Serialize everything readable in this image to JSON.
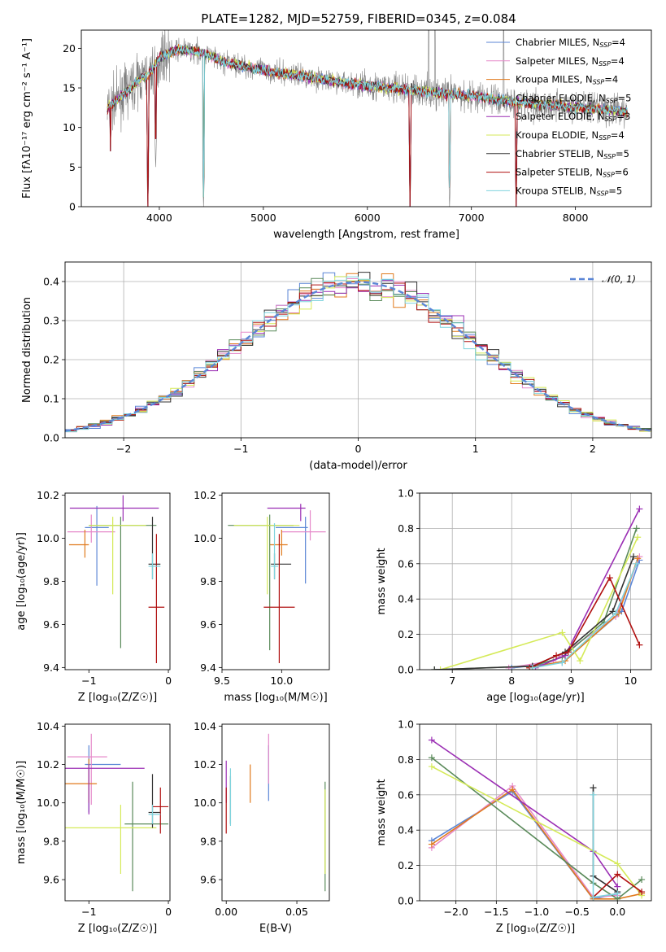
{
  "title": "PLATE=1282, MJD=52759, FIBERID=0345, z=0.084",
  "models": [
    {
      "name": "Chabrier MILES",
      "nssp": "4",
      "color": "#5b86d6"
    },
    {
      "name": "Salpeter MILES",
      "nssp": "4",
      "color": "#e589c9"
    },
    {
      "name": "Kroupa MILES",
      "nssp": "4",
      "color": "#e07a1c"
    },
    {
      "name": "Chabrier ELODIE",
      "nssp": "5",
      "color": "#5a8a5a"
    },
    {
      "name": "Salpeter ELODIE",
      "nssp": "3",
      "color": "#9b2fb4"
    },
    {
      "name": "Kroupa ELODIE",
      "nssp": "4",
      "color": "#d5ea58"
    },
    {
      "name": "Chabrier STELIB",
      "nssp": "5",
      "color": "#333333"
    },
    {
      "name": "Salpeter STELIB",
      "nssp": "6",
      "color": "#b01010"
    },
    {
      "name": "Kroupa STELIB",
      "nssp": "5",
      "color": "#7fd3dd"
    }
  ],
  "chart_data": [
    {
      "id": "spectrum",
      "type": "line",
      "xlabel": "wavelength [Angstrom, rest frame]",
      "ylabel": "Flux [fλ10⁻¹⁷ erg cm⁻² s⁻¹ A⁻¹]",
      "xlim": [
        3250,
        8730
      ],
      "ylim": [
        0,
        22.3
      ],
      "xticks": [
        "4000",
        "5000",
        "6000",
        "7000",
        "8000"
      ],
      "yticks": [
        "0",
        "5",
        "10",
        "15",
        "20"
      ],
      "data_color": "#808080",
      "continuum": {
        "x": [
          3500,
          3600,
          3700,
          3800,
          3900,
          3950,
          4000,
          4100,
          4200,
          4400,
          4600,
          4800,
          5000,
          5200,
          5400,
          5600,
          5800,
          6000,
          6200,
          6400,
          6600,
          6800,
          7000,
          7200,
          7400,
          7600,
          7800,
          8000,
          8200,
          8500
        ],
        "y": [
          12.5,
          13.5,
          14.8,
          16.0,
          16.8,
          17.5,
          18.8,
          19.5,
          19.8,
          19.5,
          18.3,
          17.8,
          17.2,
          16.8,
          16.5,
          16.0,
          15.6,
          15.3,
          15.0,
          14.8,
          14.5,
          14.2,
          14.0,
          13.6,
          13.2,
          13.0,
          12.8,
          12.6,
          12.3,
          12.0
        ]
      },
      "absorption_dips": [
        {
          "x": 3530,
          "y": 7.0
        },
        {
          "x": 3890,
          "y": 0.0
        },
        {
          "x": 3965,
          "y": 5.0
        },
        {
          "x": 4425,
          "y": 0.0
        },
        {
          "x": 6410,
          "y": 0.0
        },
        {
          "x": 6790,
          "y": 0.0
        },
        {
          "x": 7430,
          "y": 0.0
        }
      ],
      "data_spikes": [
        {
          "x": 6590,
          "y": 22.3
        },
        {
          "x": 6650,
          "y": 22.3
        },
        {
          "x": 7310,
          "y": 22.3
        }
      ],
      "legend_loc": "upper right",
      "grid": false
    },
    {
      "id": "residuals",
      "type": "step",
      "xlabel": "(data-model)/error",
      "ylabel": "Normed distribution",
      "xlim": [
        -2.5,
        2.5
      ],
      "ylim": [
        0,
        0.45
      ],
      "xticks": [
        "−2",
        "−1",
        "0",
        "1",
        "2"
      ],
      "yticks": [
        "0.0",
        "0.1",
        "0.2",
        "0.3",
        "0.4"
      ],
      "curve": {
        "label": "𝒩(0, 1)",
        "color": "#5b86d6",
        "mu": 0,
        "sigma": 1
      },
      "bin_width": 0.1,
      "grid": true,
      "legend_loc": "upper right"
    },
    {
      "id": "age_vs_Z",
      "type": "errorbar",
      "xlabel": "Z [log₁₀(Z/Z☉)]",
      "ylabel": "age  [log₁₀(age/yr)]",
      "xlim": [
        -1.3,
        0.02
      ],
      "ylim": [
        9.39,
        10.21
      ],
      "xticks": [
        "−1",
        "0"
      ],
      "yticks": [
        "9.4",
        "9.6",
        "9.8",
        "10.0",
        "10.2"
      ],
      "points": [
        {
          "model": 0,
          "x": -0.9,
          "xerr": [
            0.15,
            0.15
          ],
          "y": 10.05,
          "yerr": [
            0.27,
            0.1
          ]
        },
        {
          "model": 1,
          "x": -0.97,
          "xerr": [
            0.3,
            0.3
          ],
          "y": 10.03,
          "yerr": [
            0.05,
            0.08
          ]
        },
        {
          "model": 2,
          "x": -1.05,
          "xerr": [
            0.2,
            0.05
          ],
          "y": 9.97,
          "yerr": [
            0.06,
            0.07
          ]
        },
        {
          "model": 3,
          "x": -0.6,
          "xerr": [
            0.4,
            0.45
          ],
          "y": 10.06,
          "yerr": [
            0.57,
            0.04
          ]
        },
        {
          "model": 4,
          "x": -0.57,
          "xerr": [
            0.67,
            0.45
          ],
          "y": 10.14,
          "yerr": [
            0.06,
            0.06
          ]
        },
        {
          "model": 5,
          "x": -0.7,
          "xerr": [
            0.3,
            0.42
          ],
          "y": 10.06,
          "yerr": [
            0.32,
            0.04
          ]
        },
        {
          "model": 6,
          "x": -0.2,
          "xerr": [
            0.05,
            0.1
          ],
          "y": 9.88,
          "yerr": [
            0.07,
            0.22
          ]
        },
        {
          "model": 7,
          "x": -0.15,
          "xerr": [
            0.1,
            0.1
          ],
          "y": 9.68,
          "yerr": [
            0.26,
            0.34
          ]
        },
        {
          "model": 8,
          "x": -0.2,
          "xerr": [
            0.05,
            0.1
          ],
          "y": 9.87,
          "yerr": [
            0.06,
            0.06
          ]
        }
      ]
    },
    {
      "id": "age_vs_mass",
      "type": "errorbar",
      "xlabel": "mass [log₁₀(M/M☉)]",
      "ylabel": "",
      "xlim": [
        9.5,
        10.4
      ],
      "ylim": [
        9.39,
        10.21
      ],
      "xticks": [
        "9.5",
        "10.0"
      ],
      "yticks": [
        "9.4",
        "9.6",
        "9.8",
        "10.0",
        "10.2"
      ],
      "points": [
        {
          "model": 0,
          "x": 10.2,
          "xerr": [
            0.25,
            0.02
          ],
          "y": 10.05,
          "yerr": [
            0.26,
            0.05
          ]
        },
        {
          "model": 1,
          "x": 10.24,
          "xerr": [
            0.24,
            0.13
          ],
          "y": 10.03,
          "yerr": [
            0.04,
            0.1
          ]
        },
        {
          "model": 2,
          "x": 10.0,
          "xerr": [
            0.1,
            0.05
          ],
          "y": 9.97,
          "yerr": [
            0.05,
            0.07
          ]
        },
        {
          "model": 3,
          "x": 9.9,
          "xerr": [
            0.35,
            0.2
          ],
          "y": 10.06,
          "yerr": [
            0.58,
            0.05
          ]
        },
        {
          "model": 4,
          "x": 10.16,
          "xerr": [
            0.28,
            0.04
          ],
          "y": 10.14,
          "yerr": [
            0.06,
            0.02
          ]
        },
        {
          "model": 5,
          "x": 9.88,
          "xerr": [
            0.28,
            0.27
          ],
          "y": 10.06,
          "yerr": [
            0.32,
            0.04
          ]
        },
        {
          "model": 6,
          "x": 9.94,
          "xerr": [
            0.03,
            0.14
          ],
          "y": 9.88,
          "yerr": [
            0.07,
            0.05
          ]
        },
        {
          "model": 7,
          "x": 9.98,
          "xerr": [
            0.13,
            0.13
          ],
          "y": 9.68,
          "yerr": [
            0.26,
            0.34
          ]
        },
        {
          "model": 8,
          "x": 9.94,
          "xerr": [
            0.03,
            0.03
          ],
          "y": 9.87,
          "yerr": [
            0.06,
            0.2
          ]
        }
      ]
    },
    {
      "id": "weight_vs_age",
      "type": "line",
      "xlabel": "age  [log₁₀(age/yr)]",
      "ylabel": "mass weight",
      "xlim": [
        6.45,
        10.35
      ],
      "ylim": [
        0,
        1.0
      ],
      "xticks": [
        "7",
        "8",
        "9",
        "10"
      ],
      "yticks": [
        "0.0",
        "0.2",
        "0.4",
        "0.6",
        "0.8",
        "1.0"
      ],
      "grid": true,
      "series": [
        {
          "model": 0,
          "x": [
            8.0,
            8.85,
            9.85,
            10.15
          ],
          "y": [
            0.01,
            0.04,
            0.33,
            0.62
          ]
        },
        {
          "model": 1,
          "x": [
            7.95,
            8.7,
            9.75,
            10.15
          ],
          "y": [
            0.01,
            0.05,
            0.3,
            0.64
          ]
        },
        {
          "model": 2,
          "x": [
            8.3,
            8.9,
            9.8,
            10.12
          ],
          "y": [
            0.01,
            0.05,
            0.32,
            0.63
          ]
        },
        {
          "model": 3,
          "x": [
            6.7,
            8.35,
            8.85,
            9.55,
            10.1
          ],
          "y": [
            0.0,
            0.02,
            0.07,
            0.27,
            0.8
          ]
        },
        {
          "model": 4,
          "x": [
            8.4,
            8.9,
            10.15
          ],
          "y": [
            0.01,
            0.08,
            0.91
          ]
        },
        {
          "model": 5,
          "x": [
            6.8,
            8.85,
            9.15,
            10.12
          ],
          "y": [
            0.0,
            0.21,
            0.05,
            0.75
          ]
        },
        {
          "model": 6,
          "x": [
            6.7,
            8.35,
            8.9,
            9.7,
            10.05
          ],
          "y": [
            0.0,
            0.02,
            0.1,
            0.33,
            0.64
          ]
        },
        {
          "model": 7,
          "x": [
            8.3,
            8.75,
            8.95,
            9.65,
            10.15
          ],
          "y": [
            0.01,
            0.08,
            0.1,
            0.52,
            0.14
          ]
        },
        {
          "model": 8,
          "x": [
            8.35,
            8.85,
            9.75,
            10.1
          ],
          "y": [
            0.01,
            0.04,
            0.32,
            0.6
          ]
        }
      ]
    },
    {
      "id": "mass_vs_Z",
      "type": "errorbar",
      "xlabel": "Z [log₁₀(Z/Z☉)]",
      "ylabel": "mass [log₁₀(M/M☉)]",
      "xlim": [
        -1.3,
        0.02
      ],
      "ylim": [
        9.49,
        10.41
      ],
      "xticks": [
        "−1",
        "0"
      ],
      "yticks": [
        "9.6",
        "9.8",
        "10.0",
        "10.2",
        "10.4"
      ],
      "points": [
        {
          "model": 0,
          "x": -1.0,
          "xerr": [
            0.05,
            0.4
          ],
          "y": 10.2,
          "yerr": [
            0.25,
            0.1
          ]
        },
        {
          "model": 1,
          "x": -0.97,
          "xerr": [
            0.3,
            0.2
          ],
          "y": 10.24,
          "yerr": [
            0.25,
            0.12
          ]
        },
        {
          "model": 2,
          "x": -1.0,
          "xerr": [
            0.3,
            0.1
          ],
          "y": 10.1,
          "yerr": [
            0.1,
            0.13
          ]
        },
        {
          "model": 3,
          "x": -0.45,
          "xerr": [
            0.1,
            0.45
          ],
          "y": 9.89,
          "yerr": [
            0.35,
            0.22
          ]
        },
        {
          "model": 4,
          "x": -1.0,
          "xerr": [
            0.3,
            0.7
          ],
          "y": 10.18,
          "yerr": [
            0.24,
            0.02
          ]
        },
        {
          "model": 5,
          "x": -0.6,
          "xerr": [
            0.7,
            0.45
          ],
          "y": 9.87,
          "yerr": [
            0.24,
            0.12
          ]
        },
        {
          "model": 6,
          "x": -0.2,
          "xerr": [
            0.05,
            0.1
          ],
          "y": 9.95,
          "yerr": [
            0.08,
            0.2
          ]
        },
        {
          "model": 7,
          "x": -0.1,
          "xerr": [
            0.1,
            0.1
          ],
          "y": 9.98,
          "yerr": [
            0.14,
            0.1
          ]
        },
        {
          "model": 8,
          "x": -0.2,
          "xerr": [
            0.05,
            0.1
          ],
          "y": 9.94,
          "yerr": [
            0.05,
            0.05
          ]
        }
      ]
    },
    {
      "id": "mass_vs_ebv",
      "type": "errorbar",
      "xlabel": "E(B-V)",
      "ylabel": "",
      "xlim": [
        -0.003,
        0.073
      ],
      "ylim": [
        9.49,
        10.41
      ],
      "xticks": [
        "0.00",
        "0.05"
      ],
      "yticks": [
        "9.6",
        "9.8",
        "10.0",
        "10.2",
        "10.4"
      ],
      "points": [
        {
          "model": 0,
          "x": 0.03,
          "xerr": [
            0,
            0
          ],
          "y": 10.15,
          "yerr": [
            0.14,
            0.15
          ]
        },
        {
          "model": 1,
          "x": 0.03,
          "xerr": [
            0,
            0
          ],
          "y": 10.24,
          "yerr": [
            0.14,
            0.12
          ]
        },
        {
          "model": 2,
          "x": 0.017,
          "xerr": [
            0,
            0
          ],
          "y": 10.1,
          "yerr": [
            0.1,
            0.1
          ]
        },
        {
          "model": 3,
          "x": 0.07,
          "xerr": [
            0,
            0
          ],
          "y": 9.89,
          "yerr": [
            0.35,
            0.22
          ]
        },
        {
          "model": 4,
          "x": 0.0,
          "xerr": [
            0,
            0
          ],
          "y": 10.12,
          "yerr": [
            0.12,
            0.1
          ]
        },
        {
          "model": 5,
          "x": 0.07,
          "xerr": [
            0,
            0
          ],
          "y": 9.87,
          "yerr": [
            0.24,
            0.2
          ]
        },
        {
          "model": 6,
          "x": 0.003,
          "xerr": [
            0,
            0
          ],
          "y": 10.02,
          "yerr": [
            0.13,
            0.12
          ]
        },
        {
          "model": 7,
          "x": 0.0,
          "xerr": [
            0,
            0
          ],
          "y": 9.98,
          "yerr": [
            0.14,
            0.1
          ]
        },
        {
          "model": 8,
          "x": 0.003,
          "xerr": [
            0,
            0
          ],
          "y": 9.98,
          "yerr": [
            0.1,
            0.2
          ]
        }
      ]
    },
    {
      "id": "weight_vs_Z",
      "type": "line",
      "xlabel": "Z [log₁₀(Z/Z☉)]",
      "ylabel": "mass weight",
      "xlim": [
        -2.45,
        0.42
      ],
      "ylim": [
        0,
        1.0
      ],
      "xticks": [
        "−2.0",
        "−1.5",
        "−1.0",
        "−0.5",
        "0.0"
      ],
      "yticks": [
        "0.0",
        "0.2",
        "0.4",
        "0.6",
        "0.8",
        "1.0"
      ],
      "grid": true,
      "series": [
        {
          "model": 0,
          "x": [
            -2.3,
            -1.3,
            -0.3,
            0.0
          ],
          "y": [
            0.34,
            0.62,
            0.01,
            0.04
          ]
        },
        {
          "model": 1,
          "x": [
            -2.3,
            -1.3,
            -0.3,
            0.0
          ],
          "y": [
            0.3,
            0.65,
            0.02,
            0.03
          ]
        },
        {
          "model": 2,
          "x": [
            -2.3,
            -1.3,
            -0.3,
            0.0,
            0.3
          ],
          "y": [
            0.32,
            0.63,
            0.01,
            0.01,
            0.04
          ]
        },
        {
          "model": 3,
          "x": [
            -2.3,
            -0.3,
            0.0,
            0.3
          ],
          "y": [
            0.81,
            0.1,
            0.01,
            0.12
          ]
        },
        {
          "model": 4,
          "x": [
            -2.3,
            -0.3,
            0.0
          ],
          "y": [
            0.91,
            0.28,
            0.08
          ]
        },
        {
          "model": 5,
          "x": [
            -2.3,
            0.0,
            0.3
          ],
          "y": [
            0.76,
            0.21,
            0.03
          ]
        },
        {
          "model": 6,
          "x": [
            -0.3,
            -0.3,
            0.0
          ],
          "y": [
            0.64,
            0.14,
            0.05
          ]
        },
        {
          "model": 7,
          "x": [
            -0.3,
            0.0,
            0.3
          ],
          "y": [
            0.02,
            0.15,
            0.05
          ]
        },
        {
          "model": 8,
          "x": [
            -0.3,
            -0.3,
            0.0
          ],
          "y": [
            0.6,
            0.02,
            0.04
          ]
        }
      ]
    }
  ]
}
